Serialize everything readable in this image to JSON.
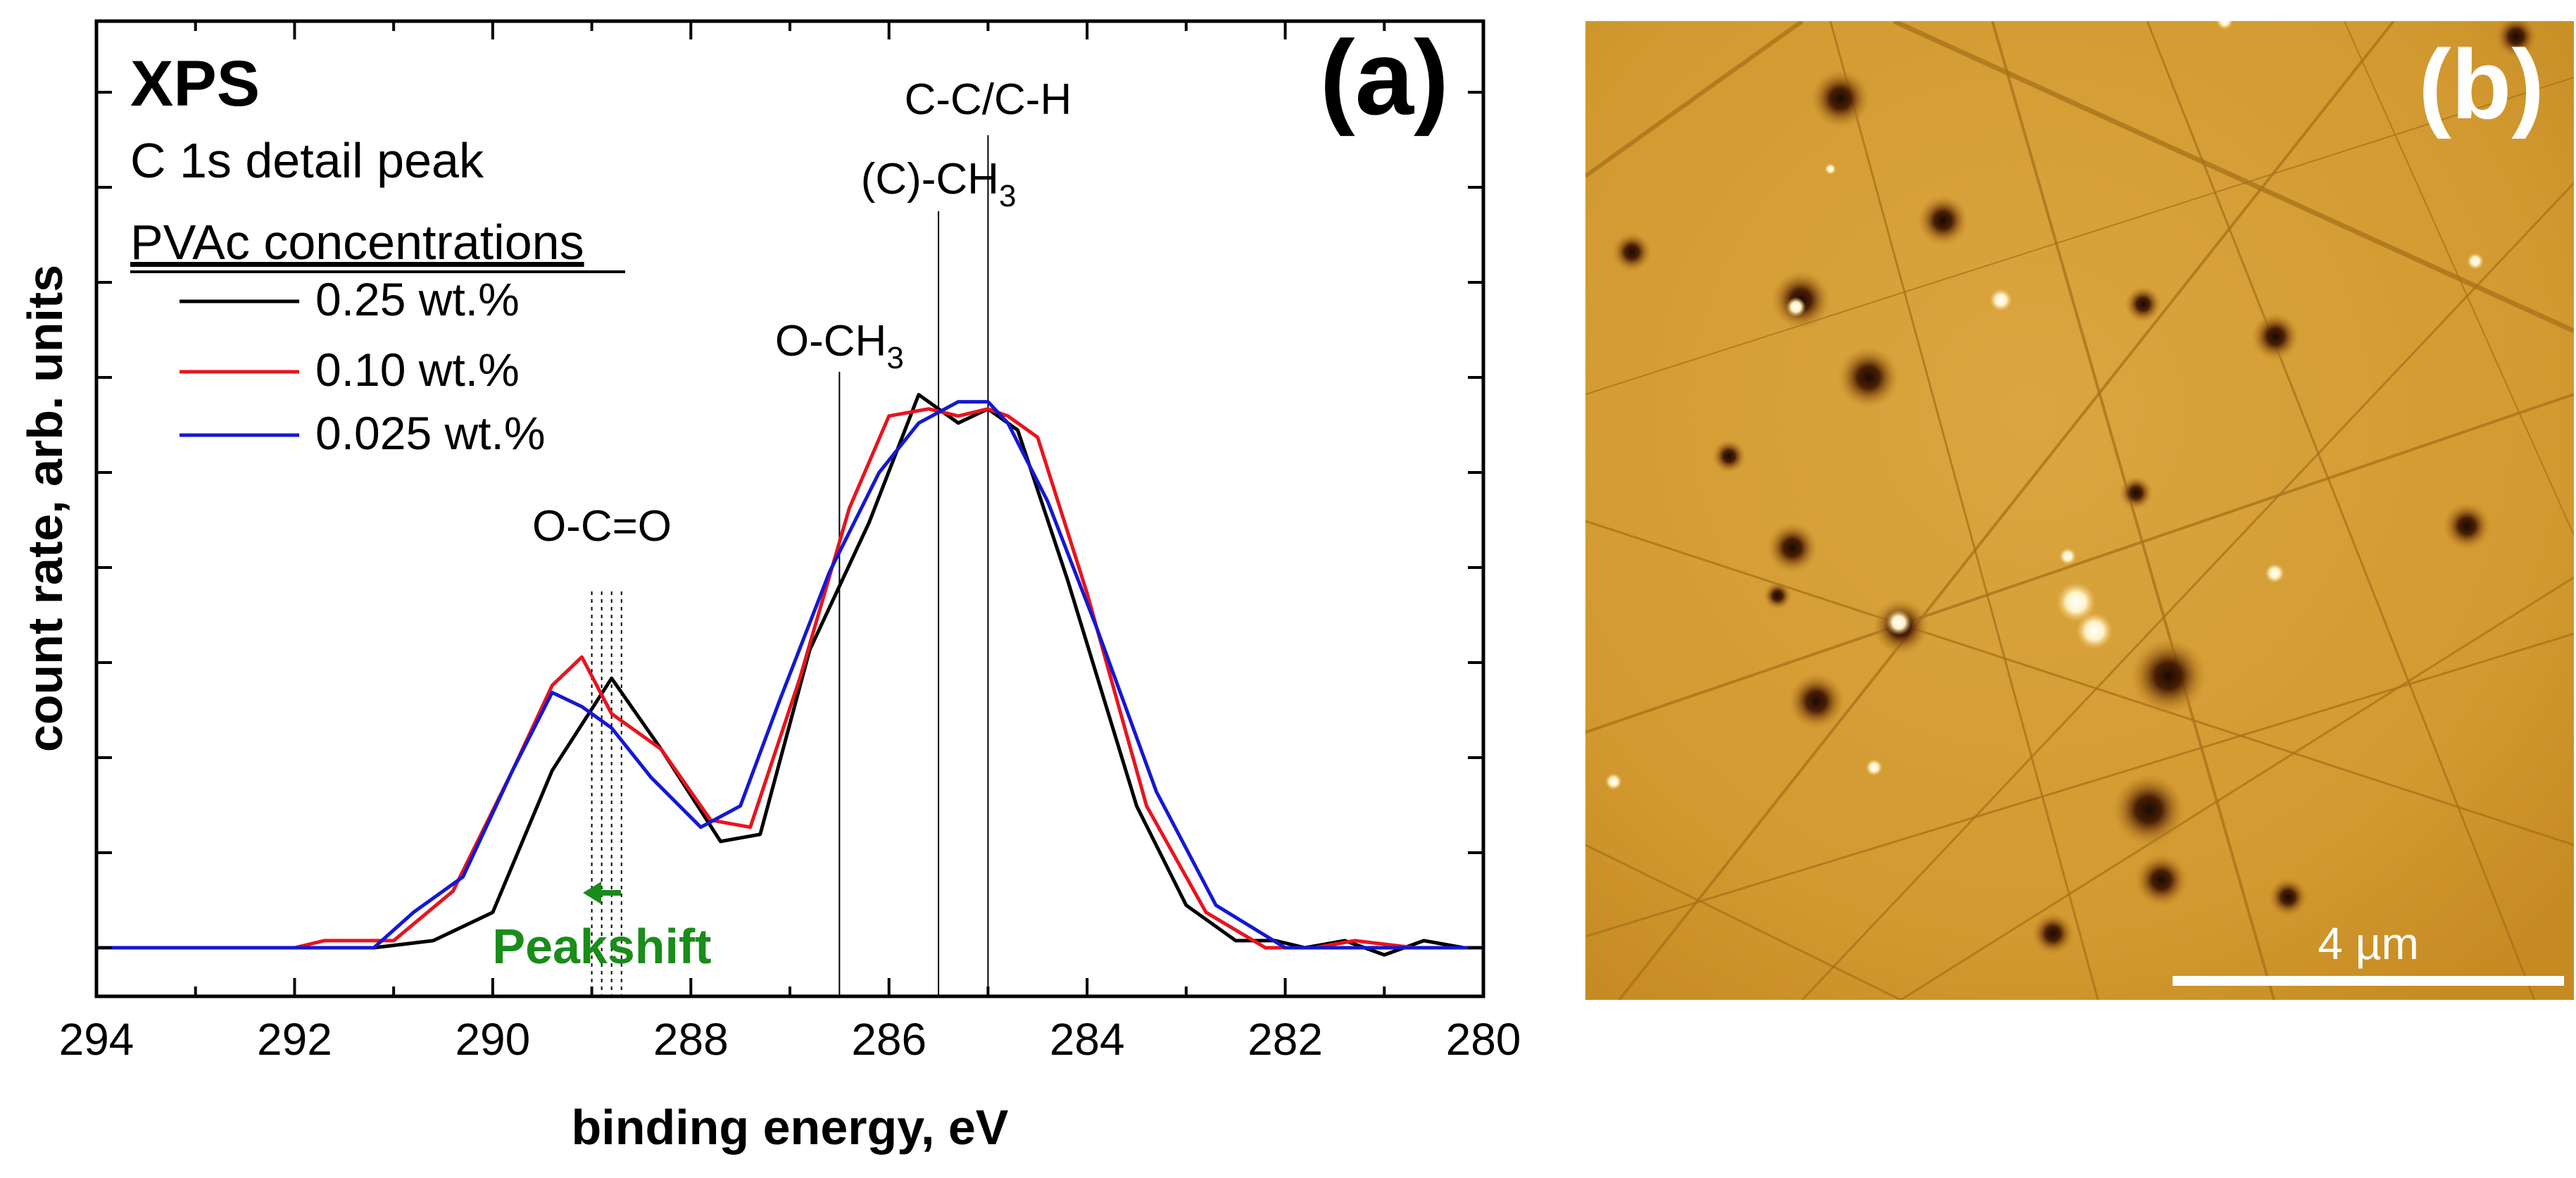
{
  "chart_data": {
    "type": "line",
    "panel_label": "(a)",
    "title": "XPS",
    "subtitle": "C 1s detail peak",
    "legend_title": "PVAc concentrations",
    "xlabel": "binding energy, eV",
    "ylabel": "count rate, arb. units",
    "xlim": [
      294,
      280
    ],
    "ylim": [
      -0.05,
      1.0
    ],
    "x_ticks": [
      "294",
      "292",
      "290",
      "288",
      "286",
      "284",
      "282",
      "280"
    ],
    "x_tick_values": [
      294,
      292,
      290,
      288,
      286,
      284,
      282,
      280
    ],
    "series": [
      {
        "name": "0.25 wt.%",
        "color": "#000000",
        "x": [
          294,
          292,
          291.2,
          290.6,
          290,
          289.4,
          288.8,
          288.3,
          287.7,
          287.3,
          286.8,
          286.2,
          285.7,
          285.3,
          285,
          284.7,
          284.2,
          283.5,
          283,
          282.5,
          282.1,
          281.8,
          281.4,
          281,
          280.6,
          280.2,
          280
        ],
        "values": [
          0.0,
          0.0,
          0.0,
          0.01,
          0.05,
          0.25,
          0.38,
          0.28,
          0.15,
          0.16,
          0.42,
          0.6,
          0.78,
          0.74,
          0.76,
          0.73,
          0.52,
          0.2,
          0.06,
          0.01,
          0.01,
          0.0,
          0.01,
          -0.01,
          0.01,
          0.0,
          0.0
        ]
      },
      {
        "name": "0.10 wt.%",
        "color": "#e8141e",
        "x": [
          294,
          292,
          291.7,
          291,
          290.4,
          289.8,
          289.4,
          289.1,
          288.8,
          288.3,
          287.8,
          287.4,
          286.9,
          286.4,
          286,
          285.6,
          285.3,
          285,
          284.8,
          284.5,
          284,
          283.4,
          282.8,
          282.2,
          281.7,
          281.3,
          280.7,
          280
        ],
        "values": [
          0.0,
          0.0,
          0.01,
          0.01,
          0.08,
          0.25,
          0.37,
          0.41,
          0.33,
          0.28,
          0.18,
          0.17,
          0.38,
          0.62,
          0.75,
          0.76,
          0.75,
          0.76,
          0.75,
          0.72,
          0.5,
          0.2,
          0.05,
          0.0,
          0.0,
          0.01,
          0.0,
          0.0
        ]
      },
      {
        "name": "0.025 wt.%",
        "color": "#1418d2",
        "x": [
          294,
          292,
          291.2,
          290.8,
          290.3,
          289.8,
          289.4,
          289.1,
          288.8,
          288.4,
          287.9,
          287.5,
          287.1,
          286.6,
          286.1,
          285.7,
          285.3,
          285,
          284.8,
          284.4,
          283.9,
          283.3,
          282.7,
          282,
          281.5,
          281,
          280.5,
          280
        ],
        "values": [
          0.0,
          0.0,
          0.0,
          0.05,
          0.1,
          0.25,
          0.36,
          0.34,
          0.31,
          0.24,
          0.17,
          0.2,
          0.35,
          0.53,
          0.67,
          0.74,
          0.77,
          0.77,
          0.74,
          0.63,
          0.45,
          0.22,
          0.06,
          0.0,
          0.0,
          0.0,
          0.0,
          0.0
        ]
      }
    ],
    "reference_lines": [
      {
        "label": "O-CH",
        "subscript": "3",
        "x": 286.5
      },
      {
        "label": "(C)-CH",
        "subscript": "3",
        "x": 285.5
      },
      {
        "label": "C-C/C-H",
        "subscript": "",
        "x": 285.0
      }
    ],
    "peak_label": "O-C=O",
    "peak_dotted_lines_x": [
      289.0,
      288.9,
      288.8,
      288.7
    ],
    "peakshift_label": "Peakshift",
    "peakshift_color": "#1a8c1a"
  },
  "image_panel": {
    "label": "(b)",
    "scale_bar_label": "4 µm",
    "base_color": "#d9a23a"
  }
}
